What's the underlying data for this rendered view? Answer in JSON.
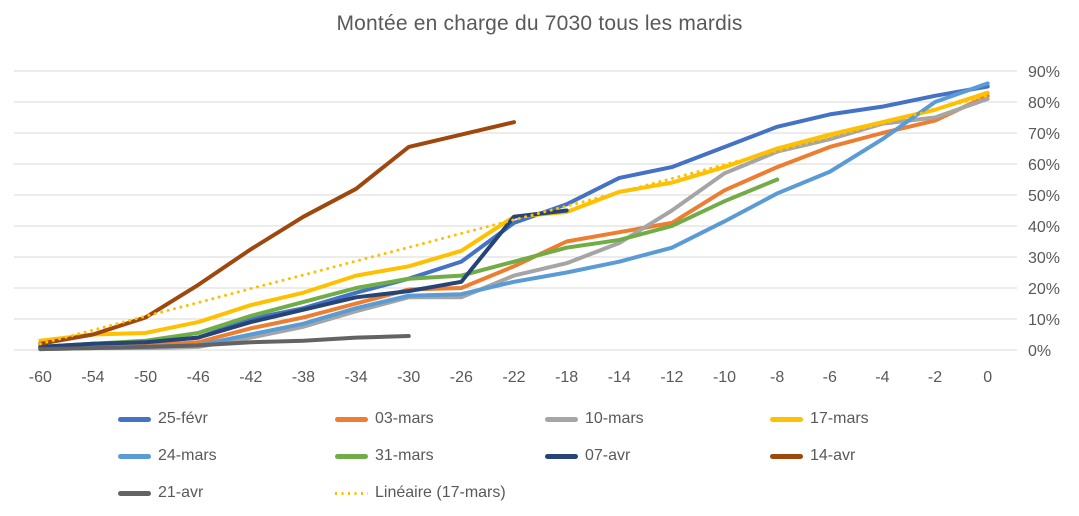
{
  "chart_data": {
    "type": "line",
    "title": "Montée en charge du 7030 tous les mardis",
    "xlabel": "",
    "ylabel": "",
    "ylim": [
      0,
      90
    ],
    "y_tick_suffix": "%",
    "y_ticks": [
      0,
      10,
      20,
      30,
      40,
      50,
      60,
      70,
      80,
      90
    ],
    "y_axis_side": "right",
    "grid": "horizontal",
    "legend_position": "bottom",
    "categories": [
      "-60",
      "-54",
      "-50",
      "-46",
      "-42",
      "-38",
      "-34",
      "-30",
      "-26",
      "-22",
      "-18",
      "-14",
      "-12",
      "-10",
      "-8",
      "-6",
      "-4",
      "-2",
      "0"
    ],
    "series": [
      {
        "name": "25-févr",
        "color": "#4472C4",
        "style": "solid",
        "values": [
          1,
          2,
          2.5,
          4,
          10,
          13.5,
          18.5,
          23,
          28.5,
          41,
          47,
          55.5,
          59,
          65.5,
          72,
          76,
          78.5,
          82,
          85
        ]
      },
      {
        "name": "03-mars",
        "color": "#ED7D31",
        "style": "solid",
        "values": [
          0.5,
          1.5,
          1.5,
          2.5,
          7,
          10.5,
          15,
          19.5,
          20,
          27,
          35,
          38,
          41,
          51.5,
          59,
          65.5,
          70,
          74,
          82
        ]
      },
      {
        "name": "10-mars",
        "color": "#A5A5A5",
        "style": "solid",
        "values": [
          0.3,
          0.6,
          0.6,
          1,
          4,
          7.5,
          12.5,
          17,
          17,
          24,
          28,
          34.5,
          45,
          57,
          64,
          68,
          73,
          75,
          81
        ]
      },
      {
        "name": "17-mars",
        "color": "#FFC000",
        "style": "solid",
        "values": [
          3,
          5,
          5.5,
          9,
          14.5,
          18.5,
          24,
          27,
          32,
          43,
          44.5,
          51,
          54,
          59,
          65,
          69.5,
          73.5,
          77.5,
          83
        ]
      },
      {
        "name": "24-mars",
        "color": "#5B9BD5",
        "style": "solid",
        "values": [
          0.5,
          1,
          1,
          1.5,
          5,
          8.5,
          13.5,
          17.5,
          18,
          22,
          25,
          28.5,
          33,
          41.5,
          50.5,
          57.5,
          68,
          80,
          86
        ]
      },
      {
        "name": "31-mars",
        "color": "#70AD47",
        "style": "solid",
        "values": [
          0.5,
          2,
          3,
          5.5,
          11,
          15.5,
          20,
          23,
          24,
          28.5,
          33,
          35.5,
          40,
          48,
          55
        ]
      },
      {
        "name": "07-avr",
        "color": "#264478",
        "style": "solid",
        "values": [
          1,
          2,
          2.5,
          4,
          9,
          13,
          17,
          19,
          22,
          43,
          45
        ]
      },
      {
        "name": "14-avr",
        "color": "#9E480E",
        "style": "solid",
        "values": [
          2,
          5,
          10.5,
          21,
          32.5,
          43,
          52,
          65.5,
          69.5,
          73.5
        ]
      },
      {
        "name": "21-avr",
        "color": "#636363",
        "style": "solid",
        "values": [
          0.3,
          0.6,
          1,
          1.5,
          2.5,
          3,
          4,
          4.5
        ]
      },
      {
        "name": "Linéaire (17-mars)",
        "color": "#FFC000",
        "style": "dotted",
        "trend_of": "17-mars",
        "values": [
          2,
          6.4,
          10.9,
          15.3,
          19.8,
          24.2,
          28.7,
          33.1,
          37.6,
          42,
          46.4,
          50.9,
          55.3,
          59.8,
          64.2,
          68.7,
          73.1,
          77.6,
          82
        ]
      }
    ]
  }
}
